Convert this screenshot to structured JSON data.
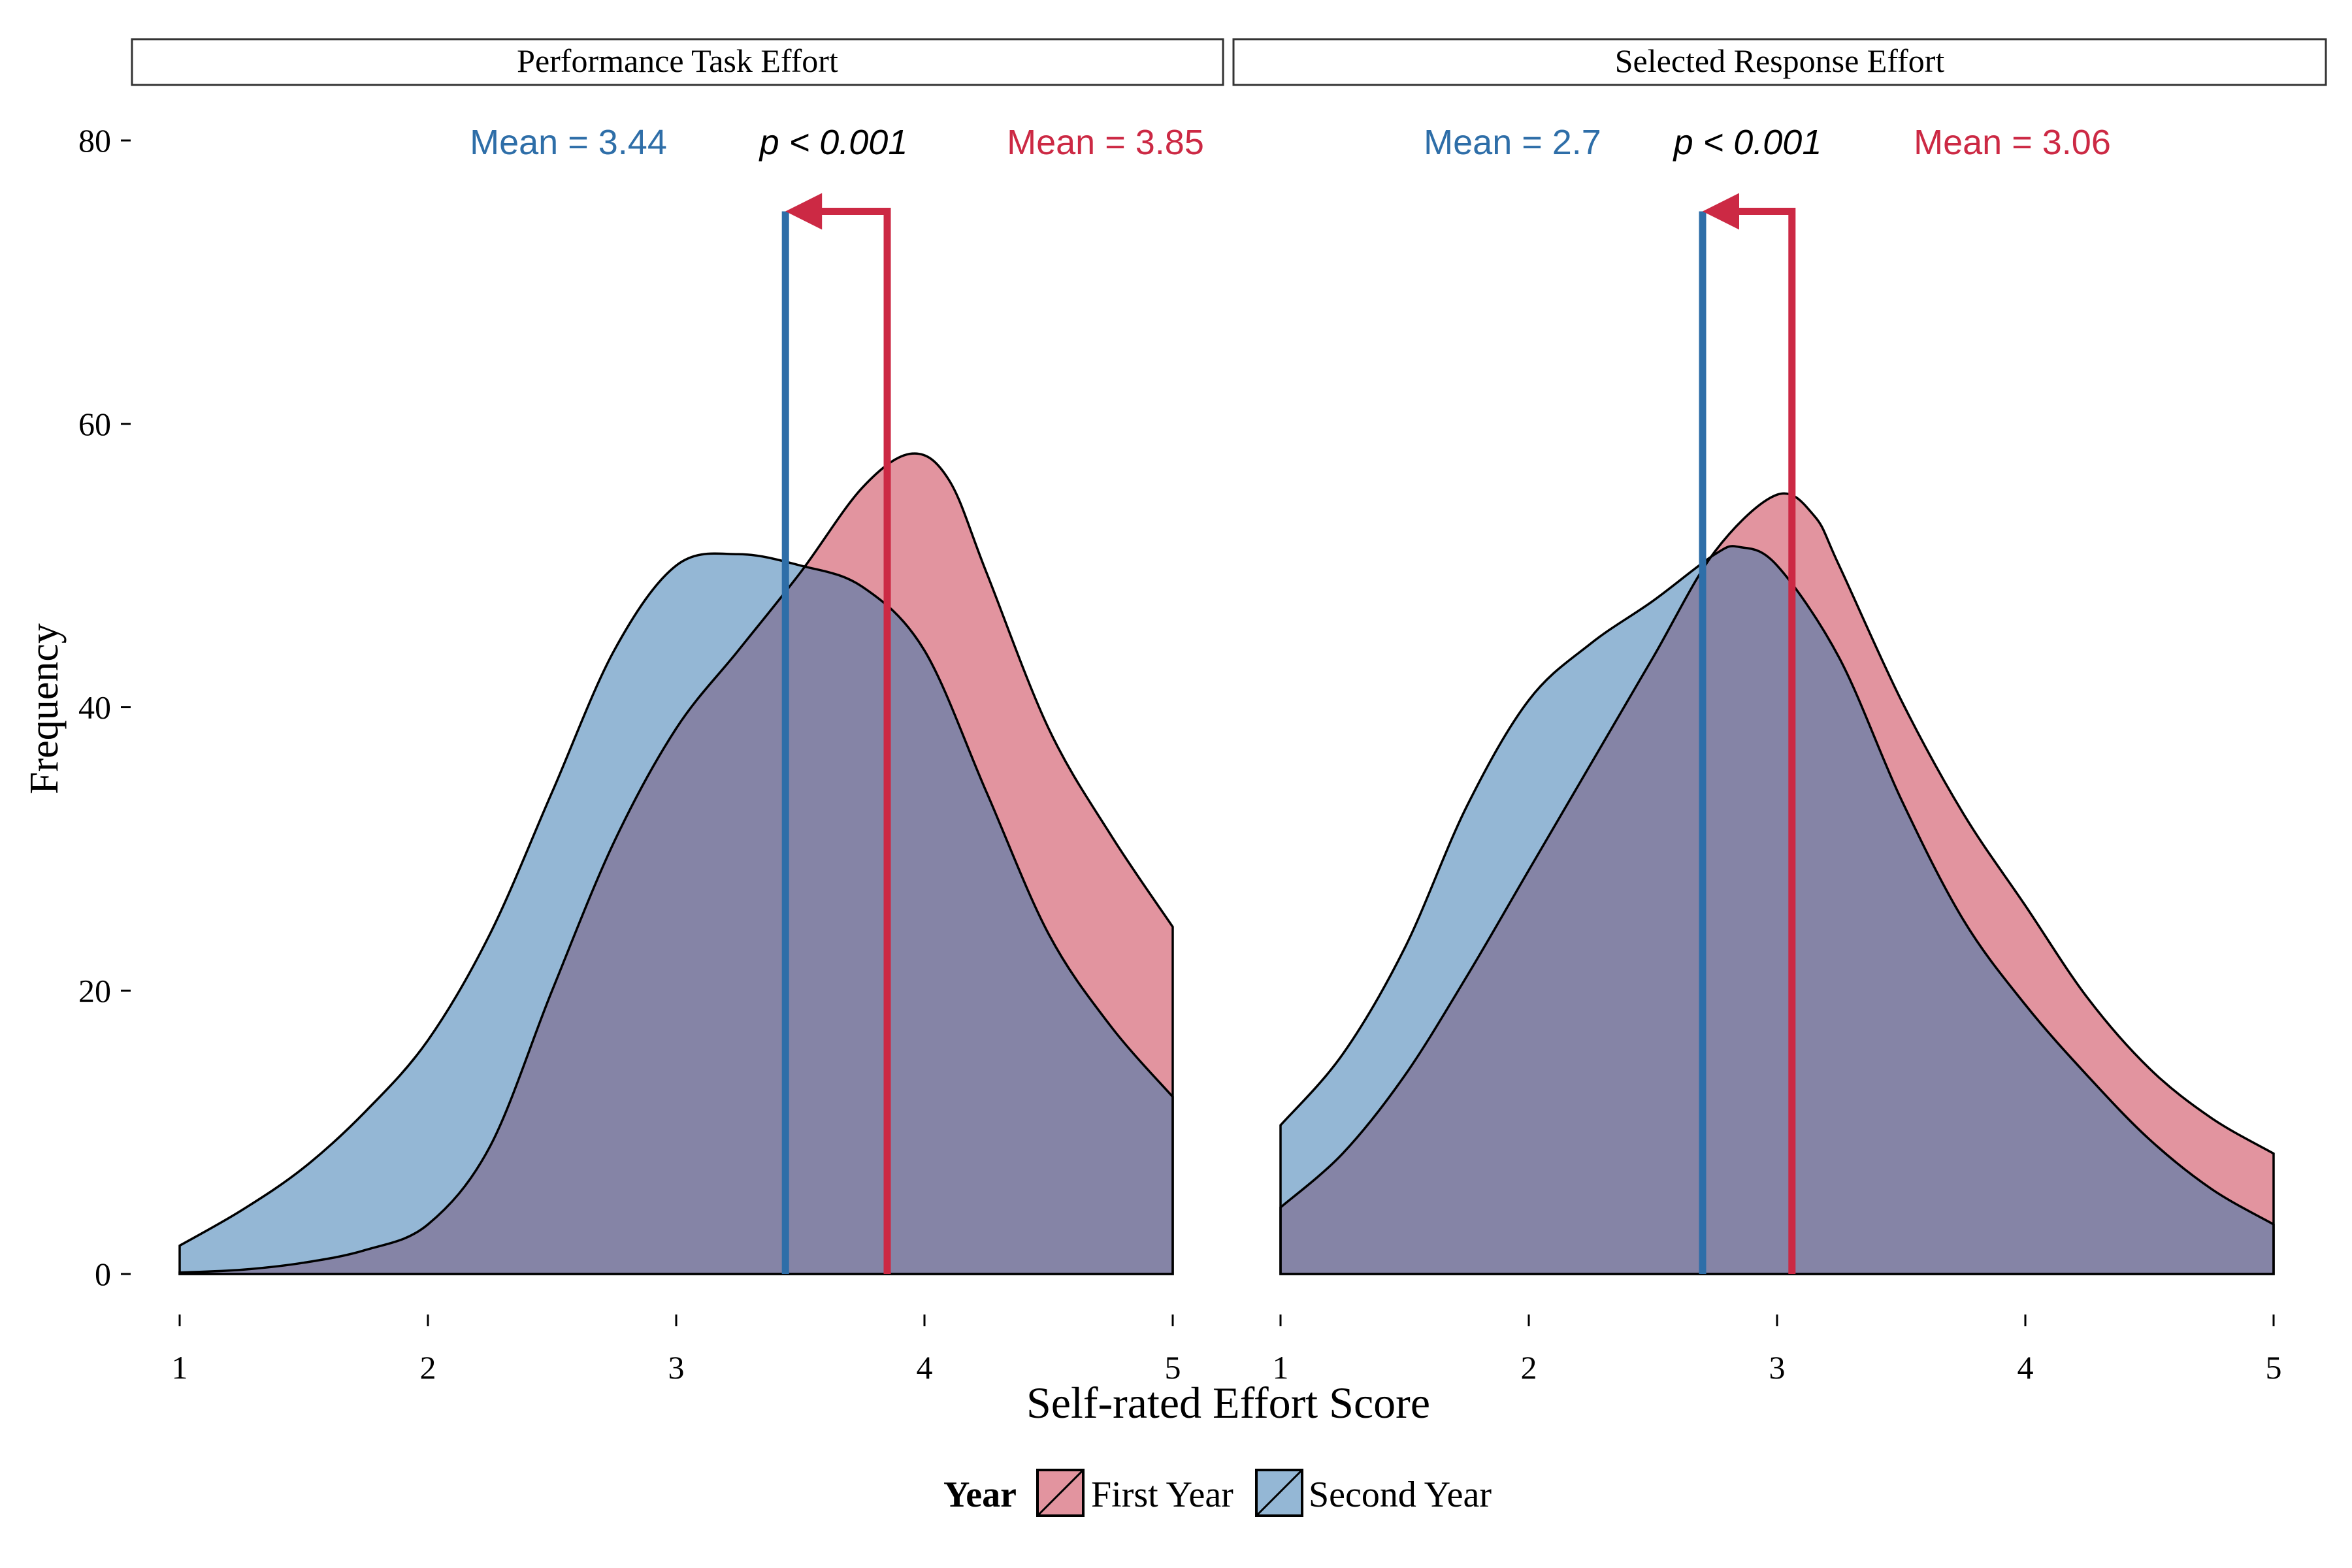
{
  "chart_data": {
    "type": "area",
    "xlabel": "Self-rated Effort Score",
    "ylabel": "Frequency",
    "ylim": [
      0,
      80
    ],
    "yticks": [
      0,
      20,
      40,
      60,
      80
    ],
    "xlim": [
      1,
      5
    ],
    "xticks": [
      1,
      2,
      3,
      4,
      5
    ],
    "grid": false,
    "legend": {
      "position": "bottom",
      "title": "Year",
      "entries": [
        {
          "label": "First Year",
          "color": "#d25a6c"
        },
        {
          "label": "Second Year",
          "color": "#5b90bf"
        }
      ]
    },
    "colors": {
      "first_year_fill": "#d25a6c",
      "second_year_fill": "#5b90bf",
      "overlap_fill": "#8584a6",
      "first_year_line": "#cc2944",
      "second_year_line": "#2e6ea8"
    },
    "panels": [
      {
        "title": "Performance Task Effort",
        "mean_second_label": "Mean = 3.44",
        "mean_first_label": "Mean = 3.85",
        "p_label": "p < 0.001",
        "mean_second": 3.44,
        "mean_first": 3.85,
        "arrow_y": 75,
        "series": [
          {
            "name": "First Year",
            "x": [
              1.0,
              1.25,
              1.5,
              1.75,
              2.0,
              2.25,
              2.5,
              2.75,
              3.0,
              3.25,
              3.5,
              3.75,
              3.95,
              4.1,
              4.25,
              4.5,
              4.75,
              5.0
            ],
            "y": [
              0.1,
              0.3,
              0.8,
              1.7,
              3.5,
              9.0,
              20.0,
              30.5,
              38.5,
              44.0,
              49.5,
              55.5,
              57.9,
              56.0,
              49.5,
              38.5,
              31.0,
              24.5
            ]
          },
          {
            "name": "Second Year",
            "x": [
              1.0,
              1.25,
              1.5,
              1.75,
              2.0,
              2.25,
              2.5,
              2.75,
              3.0,
              3.25,
              3.5,
              3.75,
              4.0,
              4.25,
              4.5,
              4.75,
              5.0
            ],
            "y": [
              2.0,
              4.5,
              7.5,
              11.5,
              16.5,
              24.0,
              34.0,
              44.0,
              50.0,
              50.8,
              50.0,
              48.5,
              44.0,
              34.0,
              24.0,
              17.5,
              12.5
            ]
          }
        ]
      },
      {
        "title": "Selected Response Effort",
        "mean_second_label": "Mean = 2.7",
        "mean_first_label": "Mean = 3.06",
        "p_label": "p < 0.001",
        "mean_second": 2.7,
        "mean_first": 3.06,
        "arrow_y": 75,
        "series": [
          {
            "name": "First Year",
            "x": [
              1.0,
              1.25,
              1.5,
              1.75,
              2.0,
              2.25,
              2.5,
              2.75,
              3.0,
              3.15,
              3.25,
              3.5,
              3.75,
              4.0,
              4.25,
              4.5,
              4.75,
              5.0
            ],
            "y": [
              4.7,
              8.5,
              14.0,
              21.0,
              28.5,
              36.0,
              43.5,
              51.0,
              55.0,
              53.5,
              50.0,
              40.5,
              32.5,
              26.0,
              19.5,
              14.5,
              11.0,
              8.5
            ]
          },
          {
            "name": "Second Year",
            "x": [
              1.0,
              1.25,
              1.5,
              1.75,
              2.0,
              2.25,
              2.5,
              2.75,
              2.85,
              3.0,
              3.25,
              3.5,
              3.75,
              4.0,
              4.25,
              4.5,
              4.75,
              5.0
            ],
            "y": [
              10.5,
              15.5,
              23.0,
              33.0,
              40.5,
              44.5,
              47.5,
              50.8,
              51.3,
              50.0,
              43.5,
              33.5,
              25.0,
              19.0,
              14.0,
              9.5,
              6.0,
              3.5
            ]
          }
        ]
      }
    ]
  }
}
